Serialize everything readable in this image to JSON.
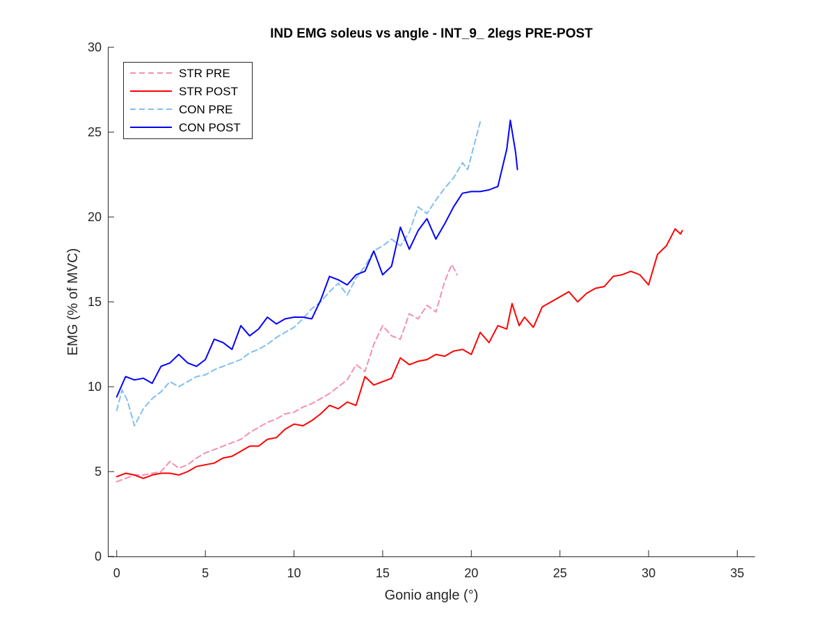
{
  "chart_data": {
    "type": "line",
    "title": "IND EMG soleus vs angle - INT_9_ 2legs PRE-POST",
    "xlabel": "Gonio angle (°)",
    "ylabel": "EMG (% of MVC)",
    "xlim": [
      -0.5,
      36
    ],
    "ylim": [
      0,
      30
    ],
    "xticks": [
      0,
      5,
      10,
      15,
      20,
      25,
      30,
      35
    ],
    "yticks": [
      0,
      5,
      10,
      15,
      20,
      25,
      30
    ],
    "grid": false,
    "legend_position": "top-left",
    "series": [
      {
        "name": "STR PRE",
        "color": "#f390b1",
        "dash": "dashed",
        "points": [
          [
            0,
            4.4
          ],
          [
            0.5,
            4.6
          ],
          [
            1,
            4.8
          ],
          [
            1.5,
            4.8
          ],
          [
            2,
            4.9
          ],
          [
            2.5,
            5.0
          ],
          [
            3,
            5.6
          ],
          [
            3.5,
            5.2
          ],
          [
            4,
            5.4
          ],
          [
            4.5,
            5.8
          ],
          [
            5,
            6.1
          ],
          [
            5.5,
            6.3
          ],
          [
            6,
            6.5
          ],
          [
            6.5,
            6.7
          ],
          [
            7,
            6.9
          ],
          [
            7.5,
            7.3
          ],
          [
            8,
            7.6
          ],
          [
            8.5,
            7.9
          ],
          [
            9,
            8.1
          ],
          [
            9.5,
            8.4
          ],
          [
            10,
            8.5
          ],
          [
            10.5,
            8.8
          ],
          [
            11,
            9.0
          ],
          [
            11.5,
            9.3
          ],
          [
            12,
            9.6
          ],
          [
            12.5,
            10.0
          ],
          [
            13,
            10.4
          ],
          [
            13.5,
            11.3
          ],
          [
            14,
            10.9
          ],
          [
            14.5,
            12.5
          ],
          [
            15,
            13.6
          ],
          [
            15.5,
            13.0
          ],
          [
            16,
            12.8
          ],
          [
            16.5,
            14.3
          ],
          [
            17,
            14.0
          ],
          [
            17.5,
            14.8
          ],
          [
            18,
            14.4
          ],
          [
            18.5,
            16.2
          ],
          [
            18.9,
            17.2
          ],
          [
            19.2,
            16.6
          ]
        ]
      },
      {
        "name": "STR POST",
        "color": "#ff0000",
        "dash": "solid",
        "points": [
          [
            0,
            4.7
          ],
          [
            0.5,
            4.9
          ],
          [
            1,
            4.8
          ],
          [
            1.5,
            4.6
          ],
          [
            2,
            4.8
          ],
          [
            2.5,
            4.9
          ],
          [
            3,
            4.9
          ],
          [
            3.5,
            4.8
          ],
          [
            4,
            5.0
          ],
          [
            4.5,
            5.3
          ],
          [
            5,
            5.4
          ],
          [
            5.5,
            5.5
          ],
          [
            6,
            5.8
          ],
          [
            6.5,
            5.9
          ],
          [
            7,
            6.2
          ],
          [
            7.5,
            6.5
          ],
          [
            8,
            6.5
          ],
          [
            8.5,
            6.9
          ],
          [
            9,
            7.0
          ],
          [
            9.5,
            7.5
          ],
          [
            10,
            7.8
          ],
          [
            10.5,
            7.7
          ],
          [
            11,
            8.0
          ],
          [
            11.5,
            8.4
          ],
          [
            12,
            8.9
          ],
          [
            12.5,
            8.7
          ],
          [
            13,
            9.1
          ],
          [
            13.5,
            8.9
          ],
          [
            14,
            10.6
          ],
          [
            14.5,
            10.1
          ],
          [
            15,
            10.3
          ],
          [
            15.5,
            10.5
          ],
          [
            16,
            11.7
          ],
          [
            16.5,
            11.3
          ],
          [
            17,
            11.5
          ],
          [
            17.5,
            11.6
          ],
          [
            18,
            11.9
          ],
          [
            18.5,
            11.8
          ],
          [
            19,
            12.1
          ],
          [
            19.5,
            12.2
          ],
          [
            20,
            11.9
          ],
          [
            20.5,
            13.2
          ],
          [
            21,
            12.6
          ],
          [
            21.5,
            13.6
          ],
          [
            22,
            13.4
          ],
          [
            22.3,
            14.9
          ],
          [
            22.7,
            13.6
          ],
          [
            23,
            14.1
          ],
          [
            23.5,
            13.5
          ],
          [
            24,
            14.7
          ],
          [
            24.5,
            15.0
          ],
          [
            25,
            15.3
          ],
          [
            25.5,
            15.6
          ],
          [
            26,
            15.0
          ],
          [
            26.5,
            15.5
          ],
          [
            27,
            15.8
          ],
          [
            27.5,
            15.9
          ],
          [
            28,
            16.5
          ],
          [
            28.5,
            16.6
          ],
          [
            29,
            16.8
          ],
          [
            29.5,
            16.6
          ],
          [
            30,
            16.0
          ],
          [
            30.5,
            17.8
          ],
          [
            31,
            18.3
          ],
          [
            31.5,
            19.3
          ],
          [
            31.8,
            19.0
          ],
          [
            31.9,
            19.2
          ]
        ]
      },
      {
        "name": "CON PRE",
        "color": "#7fbff0",
        "dash": "dashed",
        "points": [
          [
            0,
            8.6
          ],
          [
            0.3,
            9.8
          ],
          [
            0.6,
            9.2
          ],
          [
            1,
            7.7
          ],
          [
            1.5,
            8.7
          ],
          [
            2,
            9.3
          ],
          [
            2.5,
            9.7
          ],
          [
            3,
            10.3
          ],
          [
            3.5,
            10.0
          ],
          [
            4,
            10.3
          ],
          [
            4.5,
            10.6
          ],
          [
            5,
            10.7
          ],
          [
            5.5,
            11.0
          ],
          [
            6,
            11.2
          ],
          [
            6.5,
            11.4
          ],
          [
            7,
            11.6
          ],
          [
            7.5,
            12.0
          ],
          [
            8,
            12.2
          ],
          [
            8.5,
            12.5
          ],
          [
            9,
            12.9
          ],
          [
            9.5,
            13.2
          ],
          [
            10,
            13.5
          ],
          [
            10.5,
            14.0
          ],
          [
            11,
            14.6
          ],
          [
            11.5,
            15.0
          ],
          [
            12,
            15.6
          ],
          [
            12.5,
            16.1
          ],
          [
            13,
            15.4
          ],
          [
            13.5,
            16.4
          ],
          [
            14,
            17.1
          ],
          [
            14.5,
            18.0
          ],
          [
            15,
            18.3
          ],
          [
            15.5,
            18.7
          ],
          [
            16,
            18.3
          ],
          [
            16.5,
            19.1
          ],
          [
            17,
            20.6
          ],
          [
            17.5,
            20.2
          ],
          [
            18,
            21.0
          ],
          [
            18.5,
            21.7
          ],
          [
            19,
            22.3
          ],
          [
            19.5,
            23.2
          ],
          [
            19.8,
            22.8
          ],
          [
            20.2,
            24.4
          ],
          [
            20.5,
            25.6
          ]
        ]
      },
      {
        "name": "CON POST",
        "color": "#0000ff",
        "dash": "solid",
        "points": [
          [
            0,
            9.4
          ],
          [
            0.5,
            10.6
          ],
          [
            1,
            10.4
          ],
          [
            1.5,
            10.5
          ],
          [
            2,
            10.2
          ],
          [
            2.5,
            11.2
          ],
          [
            3,
            11.4
          ],
          [
            3.5,
            11.9
          ],
          [
            4,
            11.4
          ],
          [
            4.5,
            11.2
          ],
          [
            5,
            11.6
          ],
          [
            5.5,
            12.8
          ],
          [
            6,
            12.6
          ],
          [
            6.5,
            12.2
          ],
          [
            7,
            13.6
          ],
          [
            7.5,
            13.0
          ],
          [
            8,
            13.4
          ],
          [
            8.5,
            14.1
          ],
          [
            9,
            13.7
          ],
          [
            9.5,
            14.0
          ],
          [
            10,
            14.1
          ],
          [
            10.5,
            14.1
          ],
          [
            11,
            14.0
          ],
          [
            11.5,
            15.1
          ],
          [
            12,
            16.5
          ],
          [
            12.5,
            16.3
          ],
          [
            13,
            16.0
          ],
          [
            13.5,
            16.6
          ],
          [
            14,
            16.8
          ],
          [
            14.5,
            18.0
          ],
          [
            15,
            16.6
          ],
          [
            15.5,
            17.1
          ],
          [
            16,
            19.4
          ],
          [
            16.5,
            18.1
          ],
          [
            17,
            19.2
          ],
          [
            17.5,
            19.9
          ],
          [
            18,
            18.7
          ],
          [
            18.5,
            19.6
          ],
          [
            19,
            20.6
          ],
          [
            19.5,
            21.4
          ],
          [
            20,
            21.5
          ],
          [
            20.5,
            21.5
          ],
          [
            21,
            21.6
          ],
          [
            21.5,
            21.8
          ],
          [
            22,
            24.0
          ],
          [
            22.2,
            25.7
          ],
          [
            22.5,
            23.8
          ],
          [
            22.6,
            22.8
          ]
        ]
      }
    ]
  }
}
